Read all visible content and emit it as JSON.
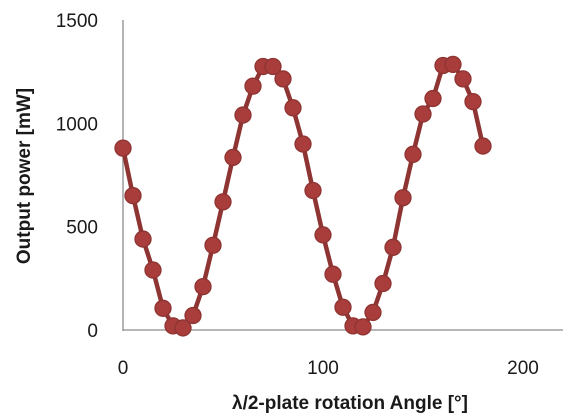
{
  "chart_data": {
    "type": "scatter",
    "title": "",
    "xlabel": "λ/2-plate rotation Angle [°]",
    "ylabel": "Output power [mW]",
    "xlim": [
      0,
      220
    ],
    "ylim": [
      0,
      1500
    ],
    "xticks": [
      "0",
      "100",
      "200"
    ],
    "yticks": [
      "0",
      "500",
      "1000",
      "1500"
    ],
    "grid": false,
    "legend": "none",
    "colors": {
      "marker": "#a83d3b",
      "line": "#8e3432",
      "axis": "#8c8c8c"
    },
    "series": [
      {
        "x": [
          0,
          5,
          10,
          15,
          20,
          25,
          30,
          35,
          40,
          45,
          50,
          55,
          60,
          65,
          70,
          75,
          80,
          85,
          90,
          95,
          100,
          105,
          110,
          115,
          120,
          125,
          130,
          135,
          140,
          145,
          150,
          155,
          160,
          165,
          170,
          175,
          180
        ],
        "y": [
          880,
          650,
          440,
          290,
          105,
          20,
          10,
          70,
          210,
          410,
          620,
          835,
          1040,
          1180,
          1275,
          1275,
          1215,
          1075,
          900,
          675,
          460,
          270,
          110,
          20,
          15,
          85,
          225,
          400,
          640,
          850,
          1045,
          1120,
          1280,
          1285,
          1215,
          1105,
          890
        ]
      }
    ]
  }
}
